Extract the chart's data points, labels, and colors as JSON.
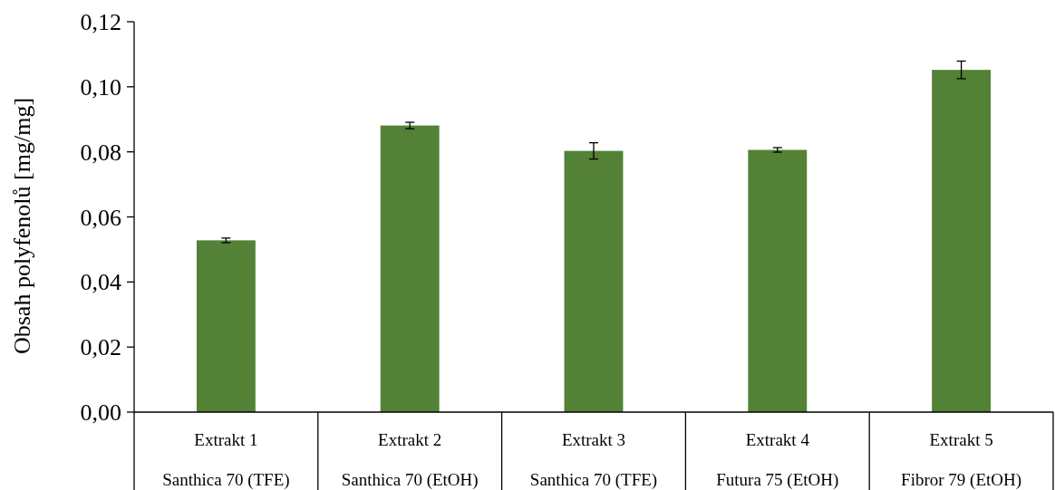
{
  "chart_data": {
    "type": "bar",
    "ylabel": "Obsah polyfenolů [mg/mg]",
    "categories": [
      "Extrakt 1\nSanthica 70 (TFE)",
      "Extrakt 2\nSanthica 70 (EtOH)",
      "Extrakt 3\nSanthica 70 (TFE)",
      "Extrakt 4\nFutura 75 (EtOH)",
      "Extrakt 5\nFibror 79 (EtOH)"
    ],
    "values": [
      0.0528,
      0.0881,
      0.0803,
      0.0806,
      0.1052
    ],
    "errors": [
      0.0007,
      0.001,
      0.0025,
      0.0007,
      0.0027
    ],
    "color": "#538135",
    "ylim": [
      0,
      0.12
    ],
    "yticks": [
      {
        "value": 0,
        "label": "0,00"
      },
      {
        "value": 0.02,
        "label": "0,02"
      },
      {
        "value": 0.04,
        "label": "0,04"
      },
      {
        "value": 0.06,
        "label": "0,06"
      },
      {
        "value": 0.08,
        "label": "0,08"
      },
      {
        "value": 0.1,
        "label": "0,10"
      },
      {
        "value": 0.12,
        "label": "0,12"
      }
    ],
    "grid": false
  }
}
